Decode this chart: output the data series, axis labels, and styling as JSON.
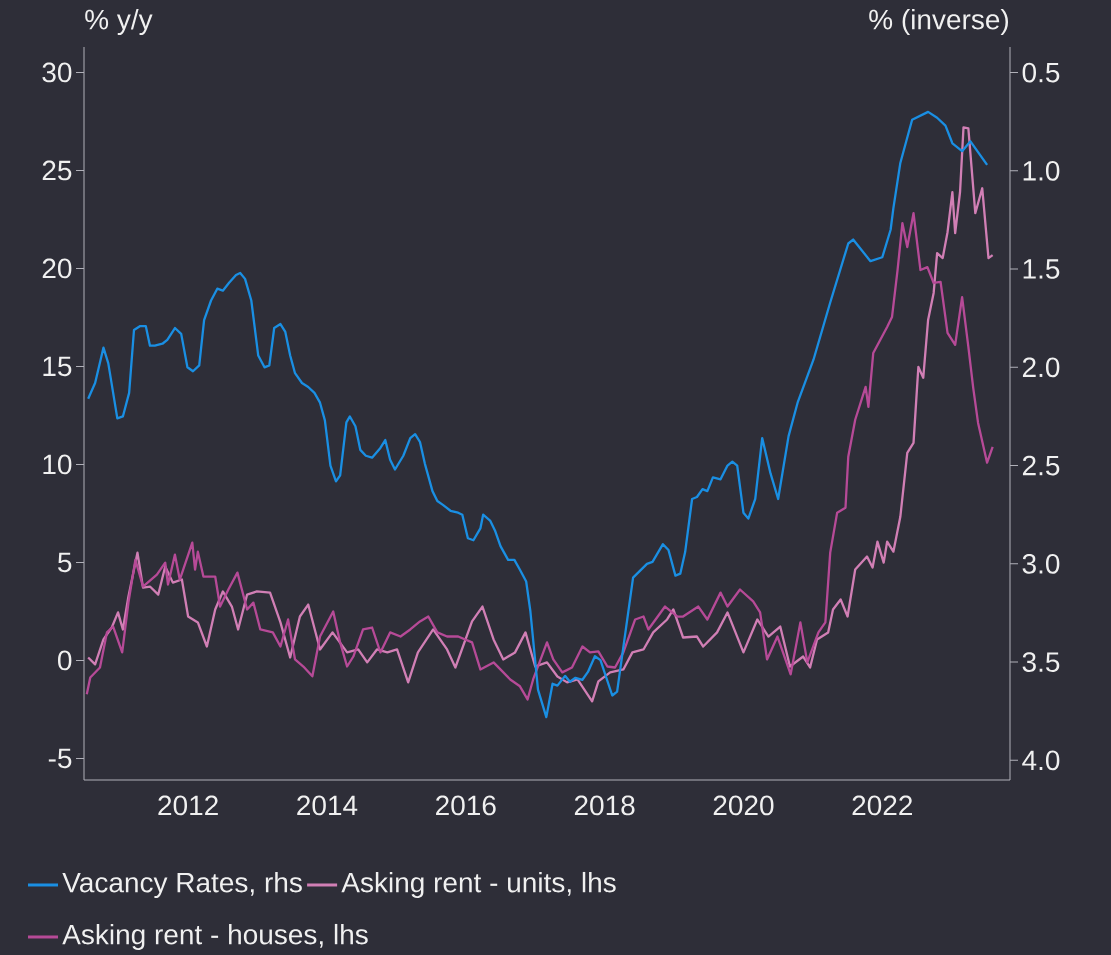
{
  "chart_data": {
    "type": "line",
    "ylabel": "% y/y",
    "y2label": "% (inverse)",
    "legend": "bottom",
    "xlim": [
      2010.5,
      2023.84
    ],
    "ylim": [
      -6.1,
      31.3
    ],
    "y2lim": [
      4.1,
      0.37
    ],
    "xticks": [
      2012,
      2014,
      2016,
      2018,
      2020,
      2022
    ],
    "yticks": [
      -5,
      0,
      5,
      10,
      15,
      20,
      25,
      30
    ],
    "y2ticks": [
      0.5,
      {
        "value": 1,
        "label": "1.0"
      },
      1.5,
      {
        "value": 2,
        "label": "2.0"
      },
      2.5,
      {
        "value": 3,
        "label": "3.0"
      },
      3.5,
      {
        "value": 4,
        "label": "4.0"
      }
    ],
    "series": [
      {
        "name": "Vacancy Rates, rhs",
        "color": "#1a8fe3",
        "axis": "y2",
        "x": [
          2010.56,
          2010.66,
          2010.78,
          2010.85,
          2010.98,
          2011.06,
          2011.15,
          2011.22,
          2011.31,
          2011.39,
          2011.45,
          2011.52,
          2011.63,
          2011.7,
          2011.81,
          2011.9,
          2011.99,
          2012.07,
          2012.16,
          2012.23,
          2012.33,
          2012.42,
          2012.5,
          2012.59,
          2012.69,
          2012.75,
          2012.82,
          2012.91,
          2013.01,
          2013.1,
          2013.17,
          2013.24,
          2013.33,
          2013.4,
          2013.47,
          2013.54,
          2013.64,
          2013.73,
          2013.82,
          2013.9,
          2013.97,
          2014.05,
          2014.13,
          2014.19,
          2014.28,
          2014.33,
          2014.41,
          2014.48,
          2014.56,
          2014.65,
          2014.77,
          2014.84,
          2014.91,
          2014.98,
          2015.1,
          2015.2,
          2015.27,
          2015.34,
          2015.41,
          2015.52,
          2015.59,
          2015.67,
          2015.78,
          2015.89,
          2015.95,
          2016.03,
          2016.11,
          2016.21,
          2016.25,
          2016.35,
          2016.42,
          2016.5,
          2016.61,
          2016.7,
          2016.78,
          2016.87,
          2016.93,
          2017.04,
          2017.16,
          2017.25,
          2017.32,
          2017.43,
          2017.5,
          2017.58,
          2017.68,
          2017.76,
          2017.86,
          2017.94,
          2018.11,
          2018.18,
          2018.41,
          2018.61,
          2018.69,
          2018.84,
          2018.92,
          2019.02,
          2019.09,
          2019.16,
          2019.26,
          2019.33,
          2019.41,
          2019.48,
          2019.56,
          2019.67,
          2019.77,
          2019.84,
          2019.91,
          2020.0,
          2020.07,
          2020.17,
          2020.27,
          2020.39,
          2020.5,
          2020.65,
          2020.78,
          2021.01,
          2021.25,
          2021.51,
          2021.58,
          2021.83,
          2022.0,
          2022.12,
          2022.16,
          2022.26,
          2022.43,
          2022.66,
          2022.79,
          2022.91,
          2023.01,
          2023.15,
          2023.27,
          2023.51
        ],
        "values": [
          2.16,
          2.08,
          1.9,
          1.98,
          2.26,
          2.25,
          2.13,
          1.81,
          1.79,
          1.79,
          1.89,
          1.89,
          1.88,
          1.86,
          1.8,
          1.83,
          2.0,
          2.02,
          1.99,
          1.76,
          1.66,
          1.6,
          1.61,
          1.57,
          1.53,
          1.52,
          1.55,
          1.66,
          1.94,
          2.0,
          1.99,
          1.8,
          1.78,
          1.82,
          1.94,
          2.03,
          2.08,
          2.1,
          2.13,
          2.18,
          2.27,
          2.5,
          2.58,
          2.55,
          2.28,
          2.25,
          2.3,
          2.42,
          2.45,
          2.46,
          2.41,
          2.37,
          2.47,
          2.52,
          2.45,
          2.36,
          2.34,
          2.38,
          2.49,
          2.63,
          2.68,
          2.7,
          2.73,
          2.74,
          2.75,
          2.87,
          2.88,
          2.82,
          2.75,
          2.78,
          2.83,
          2.91,
          2.98,
          2.98,
          3.03,
          3.09,
          3.24,
          3.64,
          3.78,
          3.61,
          3.62,
          3.57,
          3.6,
          3.58,
          3.59,
          3.55,
          3.47,
          3.49,
          3.67,
          3.65,
          3.07,
          3.0,
          2.99,
          2.9,
          2.93,
          3.06,
          3.05,
          2.94,
          2.67,
          2.66,
          2.62,
          2.63,
          2.56,
          2.57,
          2.5,
          2.48,
          2.5,
          2.74,
          2.77,
          2.67,
          2.36,
          2.54,
          2.67,
          2.35,
          2.18,
          1.96,
          1.67,
          1.37,
          1.35,
          1.46,
          1.44,
          1.3,
          1.19,
          0.96,
          0.74,
          0.7,
          0.73,
          0.77,
          0.86,
          0.9,
          0.85,
          0.97
        ]
      },
      {
        "name": "Asking rent - units, lhs",
        "color": "#d17fb5",
        "x": [
          2010.56,
          2010.66,
          2010.78,
          2010.9,
          2010.99,
          2011.06,
          2011.14,
          2011.27,
          2011.35,
          2011.45,
          2011.57,
          2011.67,
          2011.78,
          2011.91,
          2012.0,
          2012.14,
          2012.27,
          2012.39,
          2012.5,
          2012.63,
          2012.72,
          2012.85,
          2012.99,
          2013.18,
          2013.33,
          2013.47,
          2013.61,
          2013.73,
          2013.9,
          2014.08,
          2014.29,
          2014.45,
          2014.58,
          2014.72,
          2014.87,
          2015.01,
          2015.17,
          2015.31,
          2015.53,
          2015.73,
          2015.85,
          2016.09,
          2016.24,
          2016.4,
          2016.54,
          2016.71,
          2016.86,
          2017.0,
          2017.17,
          2017.32,
          2017.46,
          2017.61,
          2017.82,
          2017.91,
          2018.08,
          2018.27,
          2018.4,
          2018.56,
          2018.7,
          2018.9,
          2018.99,
          2019.13,
          2019.33,
          2019.42,
          2019.62,
          2019.77,
          2020.0,
          2020.2,
          2020.36,
          2020.53,
          2020.67,
          2020.86,
          2020.96,
          2021.06,
          2021.22,
          2021.29,
          2021.4,
          2021.5,
          2021.61,
          2021.78,
          2021.86,
          2021.93,
          2022.02,
          2022.07,
          2022.16,
          2022.26,
          2022.36,
          2022.45,
          2022.52,
          2022.59,
          2022.66,
          2022.74,
          2022.79,
          2022.87,
          2022.94,
          2023.01,
          2023.05,
          2023.12,
          2023.17,
          2023.24,
          2023.34,
          2023.44,
          2023.53,
          2023.59
        ],
        "values": [
          0.15,
          -0.2,
          1.07,
          1.68,
          2.45,
          1.58,
          3.26,
          5.5,
          3.72,
          3.77,
          3.36,
          4.79,
          3.97,
          4.13,
          2.24,
          1.94,
          0.71,
          2.6,
          3.52,
          2.75,
          1.58,
          3.36,
          3.52,
          3.46,
          1.94,
          0.15,
          2.24,
          2.85,
          0.56,
          1.43,
          0.41,
          0.56,
          -0.1,
          0.56,
          0.41,
          0.56,
          -1.12,
          0.41,
          1.58,
          0.56,
          -0.36,
          1.99,
          2.75,
          1.07,
          0.05,
          0.41,
          1.43,
          -0.31,
          -0.1,
          -0.82,
          -1.12,
          -0.97,
          -2.09,
          -1.07,
          -0.61,
          -0.46,
          0.41,
          0.56,
          1.43,
          2.09,
          2.6,
          1.17,
          1.22,
          0.71,
          1.43,
          2.45,
          0.41,
          2.09,
          1.22,
          1.73,
          -0.31,
          0.2,
          -0.36,
          1.07,
          1.43,
          2.6,
          3.11,
          2.24,
          4.64,
          5.3,
          4.74,
          6.06,
          4.99,
          6.06,
          5.55,
          7.33,
          10.59,
          11.1,
          14.98,
          14.42,
          17.37,
          18.75,
          20.78,
          20.53,
          21.85,
          23.89,
          21.8,
          23.89,
          27.2,
          27.15,
          22.82,
          24.09,
          20.53,
          20.68
        ]
      },
      {
        "name": "Asking rent - houses, lhs",
        "color": "#b64a97",
        "x": [
          2010.54,
          2010.59,
          2010.73,
          2010.83,
          2010.92,
          2011.05,
          2011.14,
          2011.24,
          2011.35,
          2011.55,
          2011.67,
          2011.71,
          2011.81,
          2011.88,
          2012.06,
          2012.1,
          2012.14,
          2012.22,
          2012.39,
          2012.46,
          2012.58,
          2012.71,
          2012.85,
          2012.94,
          2013.04,
          2013.22,
          2013.33,
          2013.44,
          2013.54,
          2013.66,
          2013.79,
          2013.9,
          2014.09,
          2014.19,
          2014.29,
          2014.38,
          2014.52,
          2014.65,
          2014.77,
          2014.91,
          2015.06,
          2015.2,
          2015.34,
          2015.46,
          2015.59,
          2015.73,
          2015.89,
          2016.09,
          2016.21,
          2016.4,
          2016.64,
          2016.78,
          2016.89,
          2016.97,
          2017.17,
          2017.26,
          2017.39,
          2017.53,
          2017.68,
          2017.79,
          2017.91,
          2018.04,
          2018.15,
          2018.27,
          2018.44,
          2018.56,
          2018.63,
          2018.87,
          2019.05,
          2019.13,
          2019.35,
          2019.48,
          2019.67,
          2019.77,
          2019.95,
          2020.14,
          2020.24,
          2020.34,
          2020.49,
          2020.68,
          2020.82,
          2020.92,
          2021.08,
          2021.18,
          2021.25,
          2021.35,
          2021.47,
          2021.51,
          2021.61,
          2021.76,
          2021.8,
          2021.87,
          2021.97,
          2022.07,
          2022.14,
          2022.22,
          2022.29,
          2022.36,
          2022.45,
          2022.55,
          2022.65,
          2022.74,
          2022.84,
          2022.94,
          2023.05,
          2023.15,
          2023.24,
          2023.31,
          2023.38,
          2023.51,
          2023.59
        ],
        "values": [
          -1.73,
          -0.87,
          -0.36,
          1.43,
          1.73,
          0.41,
          2.95,
          5.14,
          3.77,
          4.38,
          4.99,
          3.87,
          5.4,
          4.12,
          6.01,
          4.63,
          5.55,
          4.28,
          4.28,
          2.75,
          3.62,
          4.48,
          2.6,
          2.95,
          1.58,
          1.43,
          0.71,
          2.09,
          0.05,
          -0.31,
          -0.81,
          1.22,
          2.5,
          0.92,
          -0.31,
          0.2,
          1.58,
          1.68,
          0.41,
          1.43,
          1.22,
          1.58,
          1.99,
          2.24,
          1.43,
          1.22,
          1.22,
          0.92,
          -0.46,
          -0.1,
          -0.97,
          -1.32,
          -1.99,
          -0.97,
          0.92,
          0.05,
          -0.61,
          -0.36,
          0.71,
          0.41,
          0.46,
          -0.31,
          -0.36,
          0.41,
          2.09,
          2.24,
          1.58,
          2.75,
          2.24,
          2.24,
          2.75,
          2.09,
          3.46,
          2.75,
          3.62,
          3.01,
          2.45,
          0.05,
          1.22,
          -0.71,
          1.94,
          -0.1,
          1.43,
          1.94,
          5.5,
          7.54,
          7.79,
          10.39,
          12.28,
          13.96,
          12.94,
          15.69,
          16.35,
          17.01,
          17.52,
          19.92,
          22.31,
          21.09,
          22.82,
          19.92,
          20.07,
          19.26,
          19.31,
          16.71,
          16.1,
          18.54,
          16.0,
          13.91,
          12.12,
          10.09,
          10.9
        ]
      }
    ]
  }
}
